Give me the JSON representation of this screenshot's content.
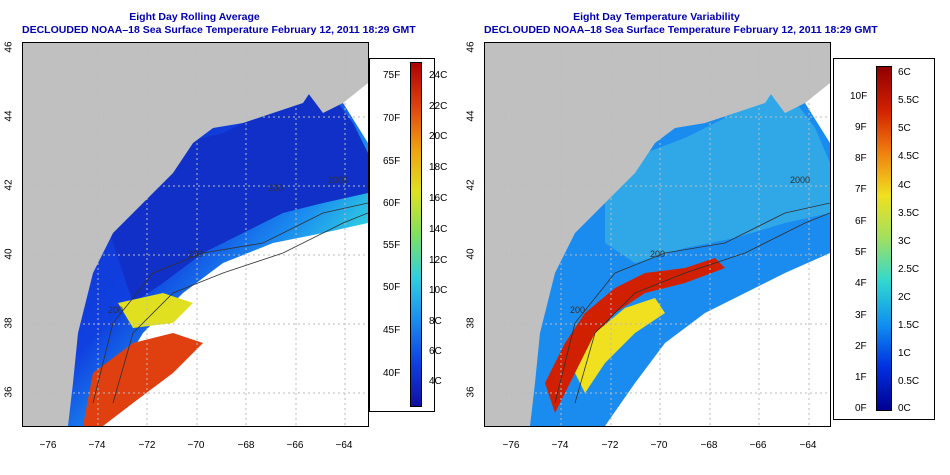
{
  "left_panel": {
    "title_line1": "Eight Day Rolling Average",
    "title_line2": "DECLOUDED NOAA–18 Sea Surface Temperature February 12, 2011 18:29 GMT",
    "contour_labels": [
      "200",
      "200",
      "2000",
      "200",
      "200",
      "200"
    ]
  },
  "right_panel": {
    "title_line1": "Eight Day Temperature Variability",
    "title_line2": "DECLOUDED NOAA–18 Sea Surface Temperature February 12, 2011 18:29 GMT",
    "contour_labels": [
      "200",
      "2000",
      "200",
      "200",
      "200"
    ]
  },
  "longitude_ticks": [
    "−76",
    "−74",
    "−72",
    "−70",
    "−68",
    "−66",
    "−64"
  ],
  "latitude_ticks": [
    "36",
    "38",
    "40",
    "42",
    "44",
    "46"
  ],
  "left_colorbar": {
    "fahrenheit_ticks": [
      "75F",
      "70F",
      "65F",
      "60F",
      "55F",
      "50F",
      "45F",
      "40F"
    ],
    "celsius_ticks": [
      "24C",
      "22C",
      "20C",
      "18C",
      "16C",
      "14C",
      "12C",
      "10C",
      "8C",
      "6C",
      "4C"
    ]
  },
  "right_colorbar": {
    "fahrenheit_ticks": [
      "10F",
      "9F",
      "8F",
      "7F",
      "6F",
      "5F",
      "4F",
      "3F",
      "2F",
      "1F",
      "0F"
    ],
    "celsius_ticks": [
      "6C",
      "5.5C",
      "5C",
      "4.5C",
      "4C",
      "3.5C",
      "3C",
      "2.5C",
      "2C",
      "1.5C",
      "1C",
      "0.5C",
      "0C"
    ]
  },
  "colors": {
    "title": "#0000b0",
    "land": "#c0c0c0",
    "no_data": "#ffffff",
    "sst_scale": [
      "#1010a0",
      "#1040e0",
      "#1a8cf0",
      "#30d0e0",
      "#80e060",
      "#e0e020",
      "#f0a010",
      "#e04010",
      "#b00000"
    ],
    "variability_scale": [
      "#000090",
      "#0030e0",
      "#1090f0",
      "#30d8d0",
      "#a0e060",
      "#f0e020",
      "#f08010",
      "#d02000",
      "#900000"
    ]
  }
}
